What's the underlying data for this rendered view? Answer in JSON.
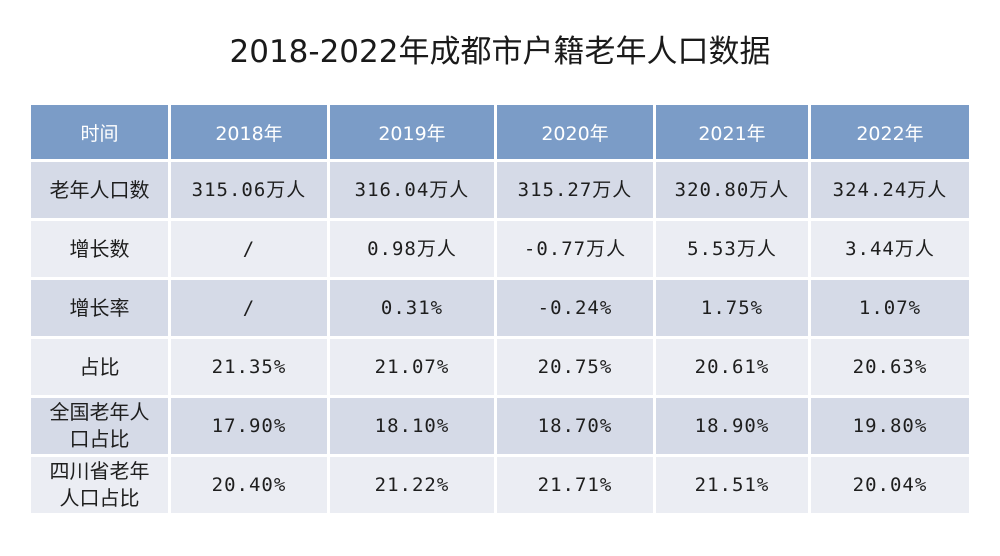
{
  "title": "2018-2022年成都市户籍老年人口数据",
  "chart_data": {
    "type": "table",
    "title": "2018-2022年成都市户籍老年人口数据",
    "columns": [
      "时间",
      "2018年",
      "2019年",
      "2020年",
      "2021年",
      "2022年"
    ],
    "rows": [
      {
        "label": "老年人口数",
        "cells": [
          "315.06万人",
          "316.04万人",
          "315.27万人",
          "320.80万人",
          "324.24万人"
        ]
      },
      {
        "label": "增长数",
        "cells": [
          "/",
          "0.98万人",
          "-0.77万人",
          "5.53万人",
          "3.44万人"
        ]
      },
      {
        "label": "增长率",
        "cells": [
          "/",
          "0.31%",
          "-0.24%",
          "1.75%",
          "1.07%"
        ]
      },
      {
        "label": "占比",
        "cells": [
          "21.35%",
          "21.07%",
          "20.75%",
          "20.61%",
          "20.63%"
        ]
      },
      {
        "label": "全国老年人口占比",
        "label_lines": [
          "全国老年人",
          "口占比"
        ],
        "cells": [
          "17.90%",
          "18.10%",
          "18.70%",
          "18.90%",
          "19.80%"
        ]
      },
      {
        "label": "四川省老年人口占比",
        "label_lines": [
          "四川省老年",
          "人口占比"
        ],
        "cells": [
          "20.40%",
          "21.22%",
          "21.71%",
          "21.51%",
          "20.04%"
        ]
      }
    ],
    "colors": {
      "header": "#7b9cc7",
      "row_odd": "#d5dae7",
      "row_even": "#ebedf3"
    }
  }
}
